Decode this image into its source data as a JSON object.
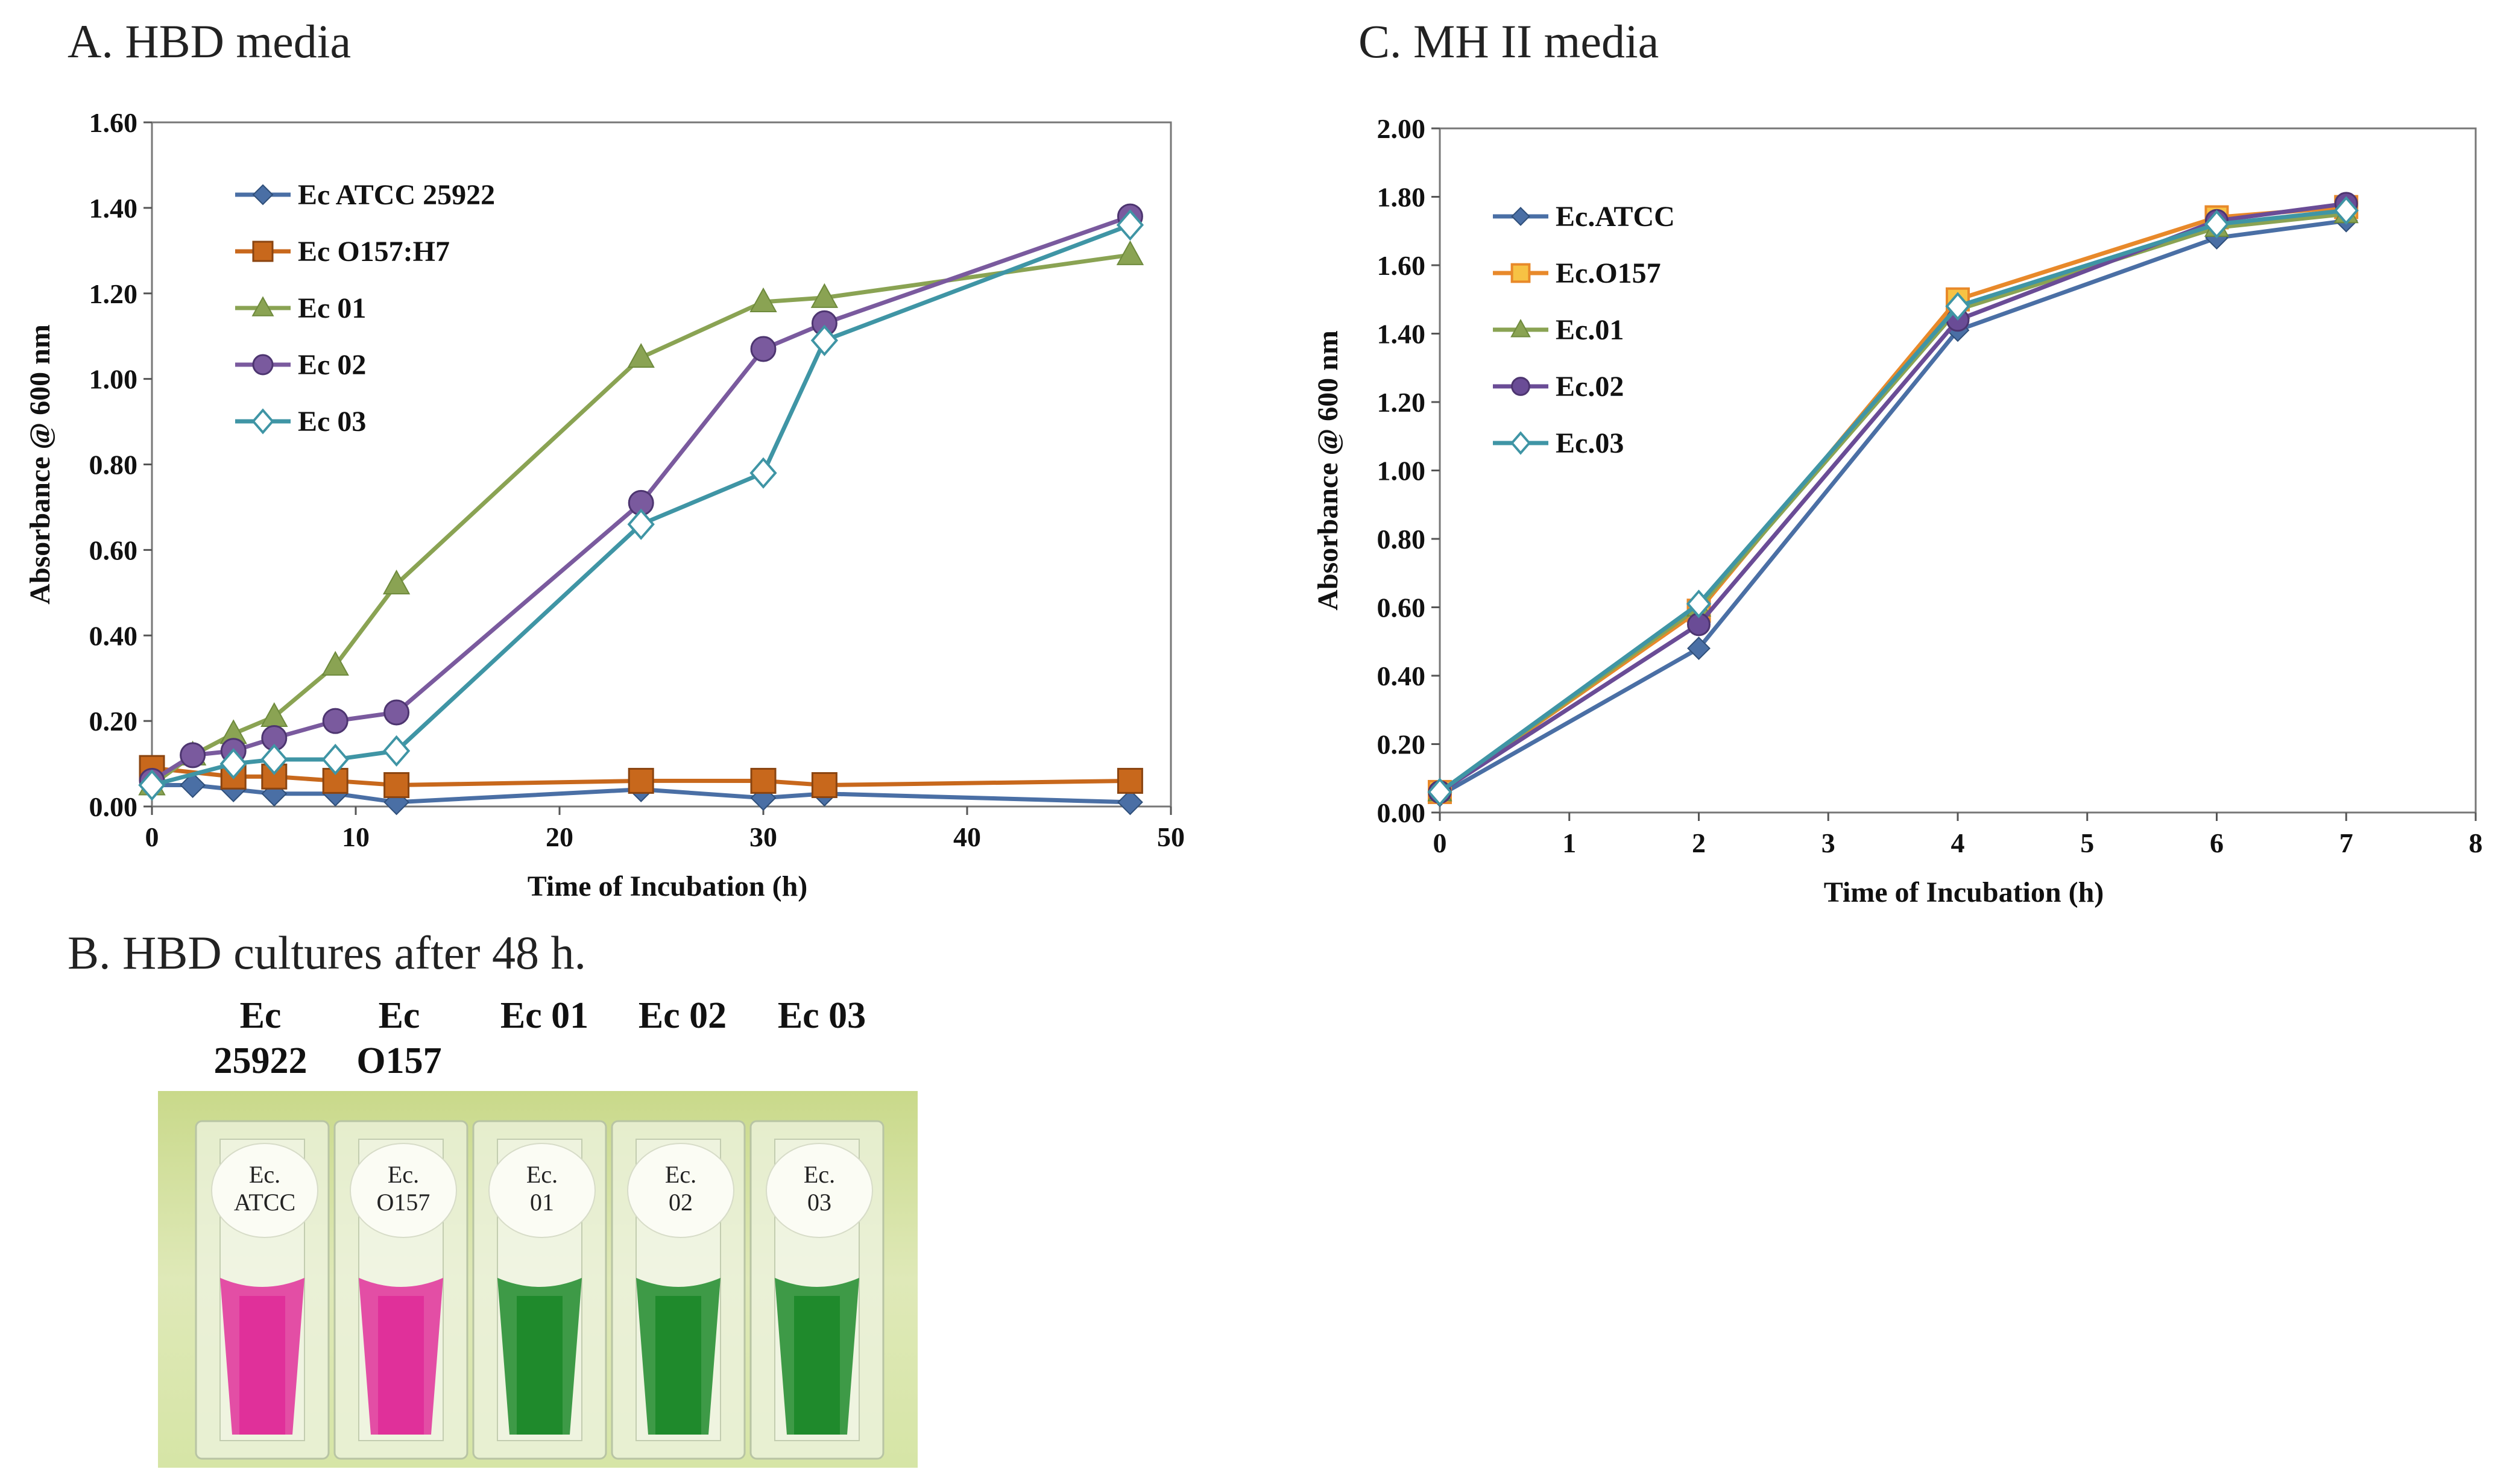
{
  "figure": {
    "panel_a_title": "A. HBD media",
    "panel_b_title": "B. HBD cultures after 48 h.",
    "panel_c_title": "C. MH II media"
  },
  "chart_data": [
    {
      "id": "hbd",
      "type": "line",
      "title": "A. HBD media",
      "xlabel": "Time of Incubation  (h)",
      "ylabel": "Absorbance  @ 600 nm",
      "xlim": [
        0,
        50
      ],
      "ylim": [
        0,
        1.6
      ],
      "xticks": [
        0,
        10,
        20,
        30,
        40,
        50
      ],
      "yticks": [
        0,
        0.2,
        0.4,
        0.6,
        0.8,
        1.0,
        1.2,
        1.4,
        1.6
      ],
      "ydecimals": 2,
      "legend_position": "top-left",
      "series": [
        {
          "name": "Ec ATCC 25922",
          "color": "#4a6fa5",
          "marker": "diamond",
          "x": [
            0,
            2,
            4,
            6,
            9,
            12,
            24,
            30,
            33,
            48
          ],
          "y": [
            0.05,
            0.05,
            0.04,
            0.03,
            0.03,
            0.01,
            0.04,
            0.02,
            0.03,
            0.01
          ]
        },
        {
          "name": "Ec O157:H7",
          "color": "#c8681c",
          "marker": "square",
          "x": [
            0,
            4,
            6,
            9,
            12,
            24,
            30,
            33,
            48
          ],
          "y": [
            0.09,
            0.07,
            0.07,
            0.06,
            0.05,
            0.06,
            0.06,
            0.05,
            0.06
          ]
        },
        {
          "name": "Ec 01",
          "color": "#8aa353",
          "marker": "triangle",
          "x": [
            0,
            2,
            4,
            6,
            9,
            12,
            24,
            30,
            33,
            48
          ],
          "y": [
            0.05,
            0.12,
            0.17,
            0.21,
            0.33,
            0.52,
            1.05,
            1.18,
            1.19,
            1.29
          ]
        },
        {
          "name": "Ec 02",
          "color": "#7a5a9e",
          "marker": "circle",
          "x": [
            0,
            2,
            4,
            6,
            9,
            12,
            24,
            30,
            33,
            48
          ],
          "y": [
            0.06,
            0.12,
            0.13,
            0.16,
            0.2,
            0.22,
            0.71,
            1.07,
            1.13,
            1.38
          ]
        },
        {
          "name": "Ec 03",
          "color": "#3f95a5",
          "marker": "open-diamond",
          "x": [
            0,
            4,
            6,
            9,
            12,
            24,
            30,
            33,
            48
          ],
          "y": [
            0.05,
            0.1,
            0.11,
            0.11,
            0.13,
            0.66,
            0.78,
            1.09,
            1.36
          ]
        }
      ]
    },
    {
      "id": "mh",
      "type": "line",
      "title": "C. MH II media",
      "xlabel": "Time of Incubation  (h)",
      "ylabel": "Absorbance  @ 600 nm",
      "xlim": [
        0,
        8
      ],
      "ylim": [
        0,
        2.0
      ],
      "xticks": [
        0,
        1,
        2,
        3,
        4,
        5,
        6,
        7,
        8
      ],
      "yticks": [
        0,
        0.2,
        0.4,
        0.6,
        0.8,
        1.0,
        1.2,
        1.4,
        1.6,
        1.8,
        2.0
      ],
      "ydecimals": 2,
      "legend_position": "top-left",
      "series": [
        {
          "name": "Ec.ATCC",
          "color": "#4a6fa5",
          "marker": "diamond",
          "x": [
            0,
            2,
            4,
            6,
            7
          ],
          "y": [
            0.05,
            0.48,
            1.41,
            1.68,
            1.73
          ]
        },
        {
          "name": "Ec.O157",
          "color": "#e8892a",
          "marker": "square-yellow",
          "x": [
            0,
            2,
            4,
            6,
            7
          ],
          "y": [
            0.06,
            0.59,
            1.5,
            1.74,
            1.77
          ]
        },
        {
          "name": "Ec.01",
          "color": "#8aa353",
          "marker": "triangle",
          "x": [
            0,
            2,
            4,
            6,
            7
          ],
          "y": [
            0.06,
            0.6,
            1.47,
            1.71,
            1.75
          ]
        },
        {
          "name": "Ec.02",
          "color": "#6a4c96",
          "marker": "circle",
          "x": [
            0,
            2,
            4,
            6,
            7
          ],
          "y": [
            0.06,
            0.55,
            1.44,
            1.73,
            1.78
          ]
        },
        {
          "name": "Ec.03",
          "color": "#3f95a5",
          "marker": "open-diamond",
          "x": [
            0,
            2,
            4,
            6,
            7
          ],
          "y": [
            0.06,
            0.61,
            1.48,
            1.72,
            1.76
          ]
        }
      ]
    }
  ],
  "cultures": {
    "headers": [
      {
        "line1": "Ec",
        "line2": "25922"
      },
      {
        "line1": "Ec",
        "line2": "O157"
      },
      {
        "line1": "Ec 01",
        "line2": ""
      },
      {
        "line1": "Ec 02",
        "line2": ""
      },
      {
        "line1": "Ec 03",
        "line2": ""
      }
    ],
    "cuvettes": [
      {
        "label1": "Ec.",
        "label2": "ATCC",
        "color": "#e0309a",
        "result": "magenta"
      },
      {
        "label1": "Ec.",
        "label2": "O157",
        "color": "#e0309a",
        "result": "magenta"
      },
      {
        "label1": "Ec.",
        "label2": "01",
        "color": "#1f8a2c",
        "result": "green"
      },
      {
        "label1": "Ec.",
        "label2": "02",
        "color": "#1f8a2c",
        "result": "green"
      },
      {
        "label1": "Ec.",
        "label2": "03",
        "color": "#1f8a2c",
        "result": "green"
      }
    ]
  }
}
